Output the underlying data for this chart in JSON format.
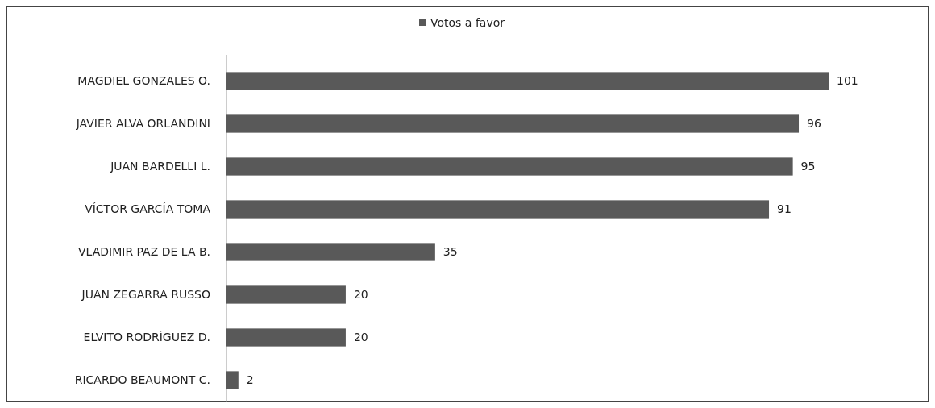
{
  "chart_data": {
    "type": "bar",
    "orientation": "horizontal",
    "categories": [
      "MAGDIEL GONZALES O.",
      "JAVIER ALVA ORLANDINI",
      "JUAN BARDELLI L.",
      "VÍCTOR GARCÍA TOMA",
      "VLADIMIR PAZ DE LA B.",
      "JUAN ZEGARRA RUSSO",
      "ELVITO RODRÍGUEZ D.",
      "RICARDO BEAUMONT C."
    ],
    "series": [
      {
        "name": "Votos a favor",
        "color": "#595959",
        "values": [
          101,
          96,
          95,
          91,
          35,
          20,
          20,
          2
        ]
      }
    ],
    "data_labels": true,
    "legend": "top"
  }
}
